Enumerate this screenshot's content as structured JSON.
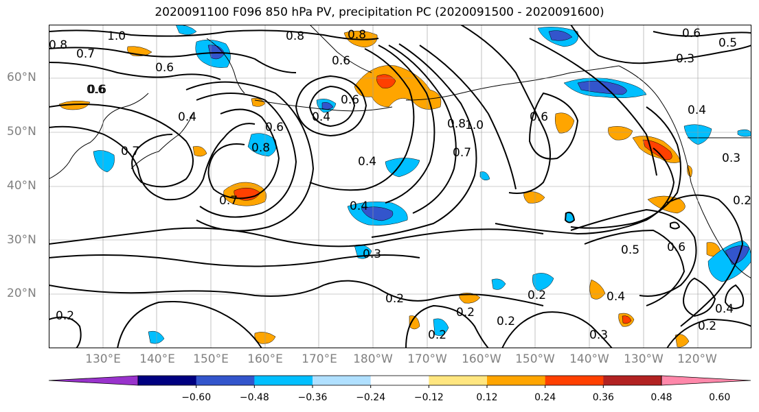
{
  "title": "2020091100 F096 850 hPa PV, precipitation PC (2020091500 - 2020091600)",
  "lat_labels": [
    "60°N",
    "50°N",
    "40°N",
    "30°N",
    "20°N"
  ],
  "lon_labels": [
    "130°E",
    "140°E",
    "150°E",
    "160°E",
    "170°E",
    "180°W",
    "170°W",
    "160°W",
    "150°W",
    "140°W",
    "130°W",
    "120°W"
  ],
  "contour_labels": [
    "1.0",
    "0.8",
    "0.7",
    "0.8",
    "0.6",
    "0.6",
    "0.8",
    "0.6",
    "0.6",
    "0.5",
    "0.3",
    "0.4",
    "0.4",
    "0.7",
    "0.6",
    "0.8",
    "0.6",
    "1.0",
    "0.8",
    "0.7",
    "0.4",
    "0.6",
    "0.4",
    "0.7",
    "0.6",
    "0.4",
    "0.3",
    "0.2",
    "0.2",
    "0.2",
    "0.2",
    "0.2",
    "0.5",
    "0.6",
    "0.4",
    "0.4",
    "0.2",
    "0.3",
    "0.2",
    "0.2",
    "0.3"
  ],
  "colorbar": {
    "tick_labels": [
      "−0.60",
      "−0.48",
      "−0.36",
      "−0.24",
      "−0.12",
      "0.12",
      "0.24",
      "0.36",
      "0.48",
      "0.60"
    ],
    "colors": [
      "#9933cc",
      "#000080",
      "#3355cc",
      "#00bfff",
      "#b0e0ff",
      "#ffffff",
      "#ffe680",
      "#ffa500",
      "#ff4000",
      "#b22222",
      "#ff88aa"
    ]
  },
  "fill_colors": {
    "blue_light": "#b0e0ff",
    "blue": "#00bfff",
    "blue_dark": "#3355cc",
    "orange_light": "#ffe680",
    "orange": "#ffa500",
    "orange_red": "#ff4000"
  }
}
